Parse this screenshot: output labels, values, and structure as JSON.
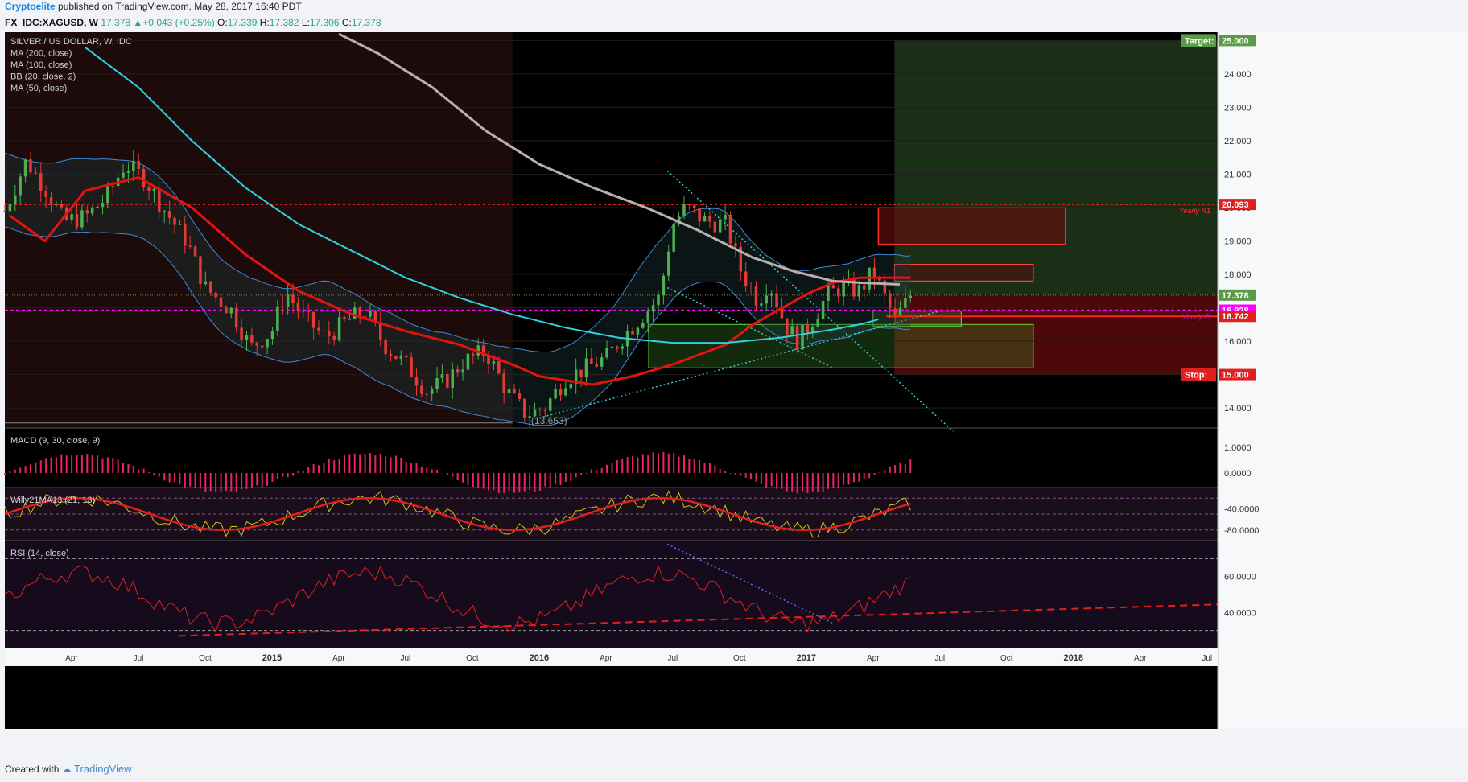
{
  "header": {
    "author": "Cryptoelite",
    "published": "published on TradingView.com, May 28, 2017 16:40 PDT"
  },
  "quote": {
    "symbol": "FX_IDC:XAGUSD, W",
    "last": "17.378",
    "change": "+0.043 (+0.25%)",
    "o_label": "O:",
    "o": "17.339",
    "h_label": "H:",
    "h": "17.382",
    "l_label": "L:",
    "l": "17.306",
    "c_label": "C:",
    "c": "17.378"
  },
  "legend": [
    "SILVER / US DOLLAR, W, IDC",
    "MA (200, close)",
    "MA (100, close)",
    "BB (20, close, 2)",
    "MA (50, close)"
  ],
  "footer": {
    "created_with": "Created with",
    "brand": "TradingView"
  },
  "colors": {
    "up": "#4caf50",
    "down": "#e53935",
    "ma50": "#e3140f",
    "ma100": "#2fd3de",
    "ma200": "#b8b0ae",
    "bb": "#3d8bd6",
    "target": "#5b9b48",
    "stop": "#e02020",
    "yearly_r1": "#ff2020",
    "yearly_p": "#ff00ff",
    "macd": "#e8226e",
    "willy": "#d4c11a",
    "rsi": "#e02020"
  },
  "chart_data": [
    {
      "type": "line",
      "name_label": "SILVER / US DOLLAR, W, IDC",
      "x_axis_ticks": [
        "Apr",
        "Jul",
        "Oct",
        "2015",
        "Apr",
        "Jul",
        "Oct",
        "2016",
        "Apr",
        "Jul",
        "Oct",
        "2017",
        "Apr",
        "Jul",
        "Oct",
        "2018",
        "Apr",
        "Jul"
      ],
      "y_axis_ticks": [
        "25.000",
        "24.000",
        "23.000",
        "22.000",
        "21.000",
        "20.000",
        "19.000",
        "18.000",
        "17.000",
        "16.000",
        "15.000",
        "14.000"
      ],
      "ylim": [
        13.4,
        25.25
      ],
      "price_labels": [
        {
          "text": "Target:",
          "value": 25.0,
          "price": "25.000"
        },
        {
          "text": "",
          "value": 20.093,
          "price": "20.093"
        },
        {
          "text": "",
          "value": 17.378,
          "price": "17.378"
        },
        {
          "text": "",
          "value": 16.928,
          "price": "16.928"
        },
        {
          "text": "",
          "value": 16.742,
          "price": "16.742"
        },
        {
          "text": "Stop:",
          "value": 15.0,
          "price": "15.000"
        }
      ],
      "annotations": {
        "low_marker": "(13.653)",
        "yearly_r1": "Yearly R1",
        "yearly_p": "Yearly P"
      },
      "series": [
        {
          "name": "MA (50, close)",
          "values": [
            [
              2014.02,
              19.75
            ],
            [
              2014.15,
              19.0
            ],
            [
              2014.3,
              20.5
            ],
            [
              2014.5,
              20.9
            ],
            [
              2014.7,
              20.0
            ],
            [
              2014.9,
              18.6
            ],
            [
              2015.1,
              17.5
            ],
            [
              2015.3,
              16.8
            ],
            [
              2015.5,
              16.3
            ],
            [
              2015.7,
              15.9
            ],
            [
              2015.9,
              15.3
            ],
            [
              2016.0,
              14.95
            ],
            [
              2016.2,
              14.7
            ],
            [
              2016.35,
              14.95
            ],
            [
              2016.5,
              15.3
            ],
            [
              2016.7,
              15.9
            ],
            [
              2016.8,
              16.5
            ],
            [
              2016.9,
              16.95
            ],
            [
              2017.0,
              17.4
            ],
            [
              2017.1,
              17.75
            ],
            [
              2017.2,
              17.9
            ],
            [
              2017.3,
              17.9
            ],
            [
              2017.39,
              17.9
            ]
          ]
        },
        {
          "name": "MA (100, close)",
          "values": [
            [
              2014.3,
              24.8
            ],
            [
              2014.5,
              23.6
            ],
            [
              2014.7,
              22.0
            ],
            [
              2014.9,
              20.6
            ],
            [
              2015.1,
              19.5
            ],
            [
              2015.3,
              18.7
            ],
            [
              2015.5,
              17.9
            ],
            [
              2015.7,
              17.3
            ],
            [
              2015.9,
              16.8
            ],
            [
              2016.1,
              16.4
            ],
            [
              2016.3,
              16.1
            ],
            [
              2016.5,
              15.95
            ],
            [
              2016.7,
              15.95
            ],
            [
              2016.9,
              16.1
            ],
            [
              2017.1,
              16.35
            ],
            [
              2017.2,
              16.5
            ],
            [
              2017.27,
              16.65
            ]
          ]
        },
        {
          "name": "MA (200, close)",
          "values": [
            [
              2015.25,
              25.2
            ],
            [
              2015.4,
              24.6
            ],
            [
              2015.6,
              23.6
            ],
            [
              2015.8,
              22.3
            ],
            [
              2016.0,
              21.3
            ],
            [
              2016.2,
              20.6
            ],
            [
              2016.4,
              20.0
            ],
            [
              2016.6,
              19.3
            ],
            [
              2016.8,
              18.5
            ],
            [
              2016.95,
              18.1
            ],
            [
              2017.1,
              17.8
            ],
            [
              2017.2,
              17.75
            ],
            [
              2017.35,
              17.7
            ]
          ]
        }
      ]
    },
    {
      "type": "bar",
      "name_label": "MACD (9, 30, close, 9)",
      "y_axis_ticks": [
        "1.0000",
        "0.0000"
      ]
    },
    {
      "type": "line",
      "name_label": "Willy21MA13 (21, 13)",
      "y_axis_ticks": [
        "-40.0000",
        "-80.0000"
      ]
    },
    {
      "type": "line",
      "name_label": "RSI (14, close)",
      "y_axis_ticks": [
        "60.0000",
        "40.0000"
      ]
    }
  ]
}
